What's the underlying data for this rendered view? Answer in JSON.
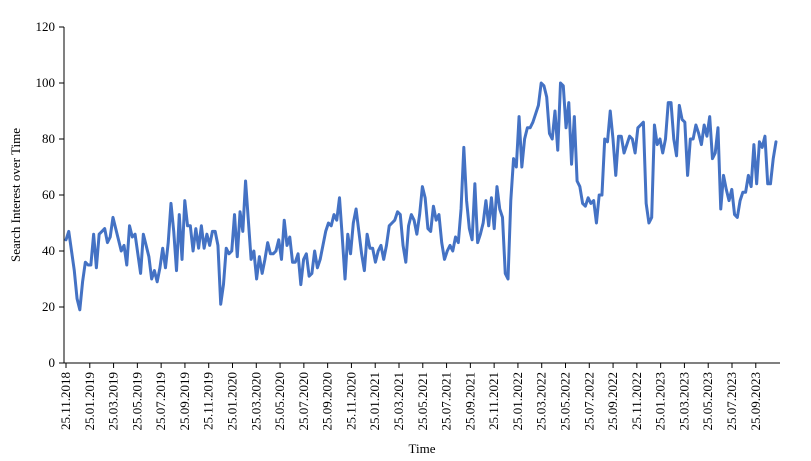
{
  "chart_data": {
    "type": "line",
    "title": "",
    "xlabel": "Time",
    "ylabel": "Search Interest over Time",
    "ylim": [
      0,
      120
    ],
    "yticks": [
      0,
      20,
      40,
      60,
      80,
      100,
      120
    ],
    "grid": false,
    "legend": "none",
    "x_tick_labels": [
      "25.11.2018",
      "25.01.2019",
      "25.03.2019",
      "25.05.2019",
      "25.07.2019",
      "25.09.2019",
      "25.11.2019",
      "25.01.2020",
      "25.03.2020",
      "25.05.2020",
      "25.07.2020",
      "25.09.2020",
      "25.11.2020",
      "25.01.2021",
      "25.03.2021",
      "25.05.2021",
      "25.07.2021",
      "25.09.2021",
      "25.11.2021",
      "25.01.2022",
      "25.03.2022",
      "25.05.2022",
      "25.07.2022",
      "25.09.2022",
      "25.11.2022",
      "25.01.2023",
      "25.03.2023",
      "25.05.2023",
      "25.07.2023",
      "25.09.2023"
    ],
    "x_frequency": "weekly",
    "series": [
      {
        "color": "#4472C4",
        "values": [
          44,
          47,
          40,
          33,
          23,
          19,
          29,
          36,
          35,
          35,
          46,
          34,
          46,
          47,
          48,
          43,
          45,
          52,
          48,
          44,
          40,
          42,
          35,
          49,
          45,
          46,
          39,
          32,
          46,
          42,
          38,
          30,
          33,
          29,
          34,
          41,
          34,
          43,
          57,
          47,
          33,
          53,
          37,
          58,
          49,
          49,
          40,
          48,
          41,
          49,
          41,
          46,
          42,
          47,
          47,
          42,
          21,
          28,
          41,
          39,
          40,
          53,
          38,
          54,
          47,
          65,
          51,
          37,
          40,
          30,
          38,
          32,
          37,
          43,
          39,
          39,
          40,
          44,
          37,
          51,
          42,
          45,
          36,
          36,
          39,
          28,
          37,
          39,
          31,
          32,
          40,
          34,
          37,
          42,
          47,
          50,
          49,
          53,
          51,
          59,
          45,
          30,
          46,
          39,
          50,
          55,
          47,
          39,
          33,
          46,
          41,
          41,
          36,
          40,
          42,
          37,
          42,
          49,
          50,
          51,
          54,
          53,
          42,
          36,
          49,
          53,
          51,
          46,
          53,
          63,
          59,
          48,
          47,
          56,
          51,
          53,
          43,
          37,
          40,
          42,
          40,
          45,
          43,
          55,
          77,
          58,
          48,
          44,
          64,
          43,
          46,
          50,
          58,
          49,
          59,
          48,
          63,
          55,
          52,
          32,
          30,
          58,
          73,
          70,
          88,
          70,
          80,
          84,
          84,
          86,
          89,
          92,
          100,
          99,
          95,
          82,
          80,
          90,
          76,
          100,
          99,
          84,
          93,
          71,
          88,
          65,
          63,
          57,
          56,
          59,
          57,
          58,
          50,
          60,
          60,
          80,
          79,
          90,
          80,
          67,
          81,
          81,
          75,
          78,
          81,
          80,
          75,
          84,
          85,
          86,
          57,
          50,
          52,
          85,
          78,
          80,
          75,
          80,
          93,
          93,
          80,
          74,
          92,
          87,
          86,
          67,
          80,
          80,
          85,
          82,
          78,
          85,
          81,
          88,
          73,
          75,
          84,
          55,
          67,
          62,
          58,
          62,
          53,
          52,
          58,
          61,
          61,
          67,
          63,
          78,
          64,
          79,
          77,
          81,
          64,
          64,
          73,
          79
        ]
      }
    ]
  }
}
